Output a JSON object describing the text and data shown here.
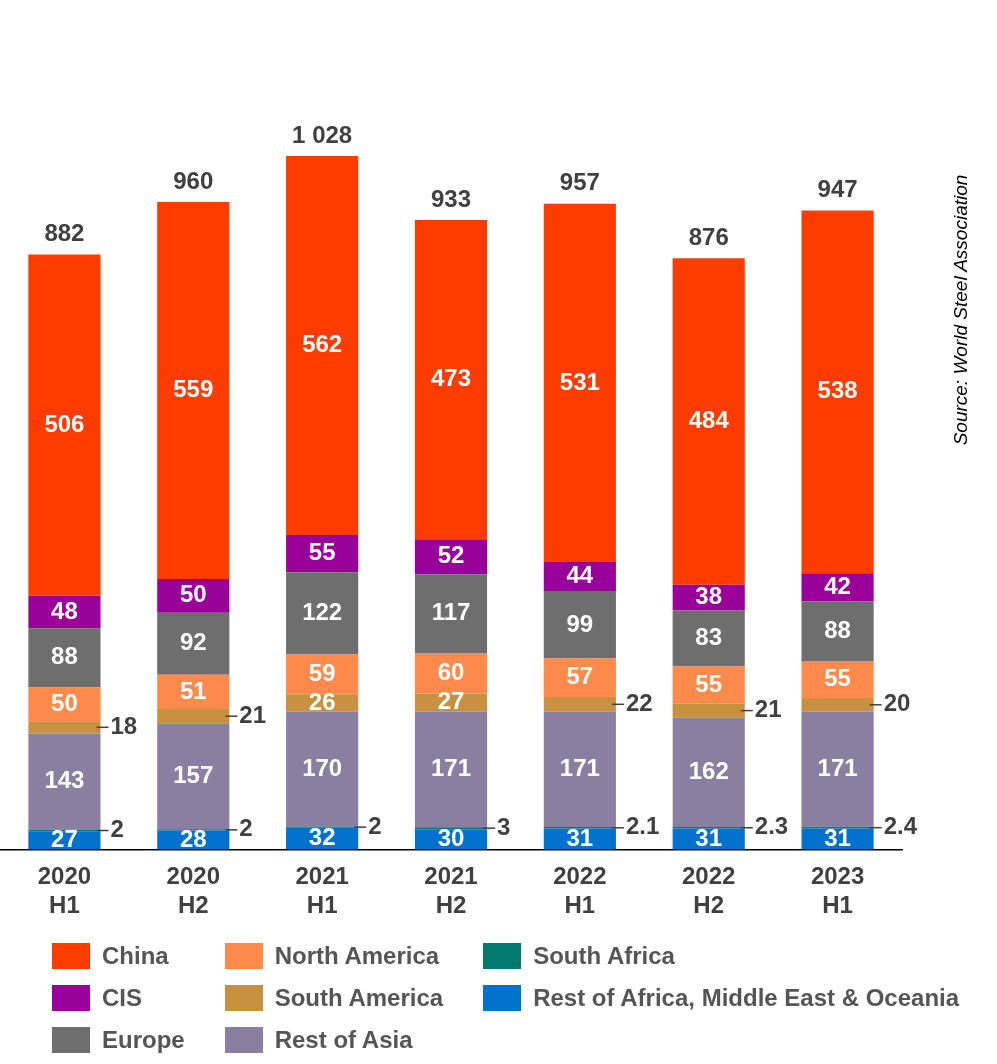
{
  "chart_data": {
    "type": "bar",
    "stacked": true,
    "data_labels": true,
    "legend": "bottom",
    "grid": false,
    "categories": [
      "2020 H1",
      "2020 H2",
      "2021 H1",
      "2021 H2",
      "2022 H1",
      "2022 H2",
      "2023 H1"
    ],
    "series": [
      {
        "name": "Rest of Africa, Middle East & Oceania",
        "color": "#0072ce",
        "values": [
          27,
          28,
          32,
          30,
          31,
          31,
          31
        ]
      },
      {
        "name": "South Africa",
        "color": "#007a6e",
        "values": [
          2,
          2,
          2,
          3,
          2.1,
          2.3,
          2.4
        ]
      },
      {
        "name": "Rest of Asia",
        "color": "#8a7fa0",
        "values": [
          143,
          157,
          170,
          171,
          171,
          162,
          171
        ]
      },
      {
        "name": "South America",
        "color": "#c8913f",
        "values": [
          18,
          21,
          26,
          27,
          22,
          21,
          20
        ]
      },
      {
        "name": "North America",
        "color": "#ff8a4c",
        "values": [
          50,
          51,
          59,
          60,
          57,
          55,
          55
        ]
      },
      {
        "name": "Europe",
        "color": "#6e6e6e",
        "values": [
          88,
          92,
          122,
          117,
          99,
          83,
          88
        ]
      },
      {
        "name": "CIS",
        "color": "#990099",
        "values": [
          48,
          50,
          55,
          52,
          44,
          38,
          42
        ]
      },
      {
        "name": "China",
        "color": "#ff3c00",
        "values": [
          506,
          559,
          562,
          473,
          531,
          484,
          538
        ]
      }
    ],
    "totals": [
      "882",
      "960",
      "1 028",
      "933",
      "957",
      "876",
      "947"
    ],
    "annotations": [
      "Source: World Steel Association"
    ]
  }
}
